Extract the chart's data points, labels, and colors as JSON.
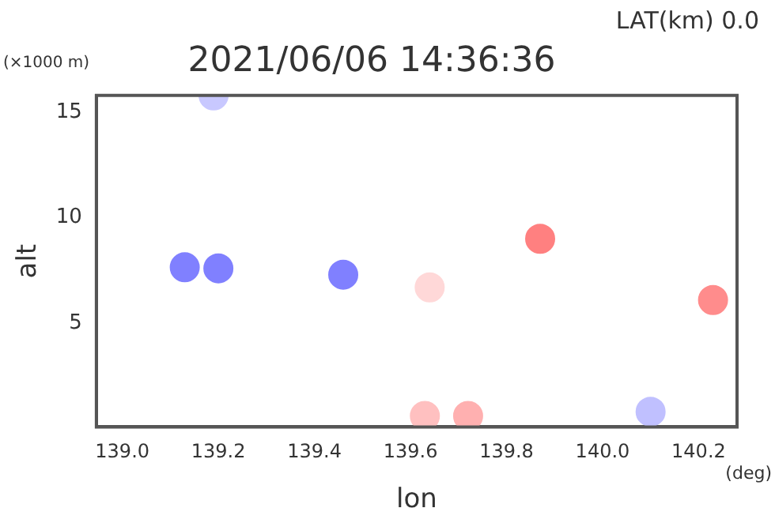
{
  "chart_data": {
    "type": "scatter",
    "title": "2021/06/06 14:36:36",
    "xlabel": "lon",
    "ylabel": "alt",
    "annotations": [
      "LAT(km) 0.0",
      "(×1000 m)",
      "(deg)"
    ],
    "x": [
      139.13,
      139.2,
      139.46,
      139.64,
      139.87,
      140.23,
      139.19,
      140.1,
      139.63,
      139.72
    ],
    "values": [
      7.65,
      7.6,
      7.3,
      6.7,
      9.0,
      6.1,
      15.8,
      0.8,
      0.6,
      0.6
    ],
    "colors": [
      "#8080ff",
      "#8080ff",
      "#8080ff",
      "#ffd8d8",
      "#ff8080",
      "#ff8c8c",
      "#c8c8ff",
      "#c0c0ff",
      "#ffc0c0",
      "#ffb0b0"
    ],
    "marker": "circle",
    "xlim": [
      138.946,
      140.28
    ],
    "xticks": [
      {
        "value": 139,
        "label": "139.0"
      },
      {
        "value": 139.2,
        "label": "139.2"
      },
      {
        "value": 139.4,
        "label": "139.4"
      },
      {
        "value": 139.6,
        "label": "139.6"
      },
      {
        "value": 139.8,
        "label": "139.8"
      },
      {
        "value": 140,
        "label": "140.0"
      },
      {
        "value": 140.2,
        "label": "140.2"
      }
    ],
    "ylim": [
      0.08,
      15.8
    ],
    "yticks": [
      5,
      10,
      15
    ],
    "grid": false,
    "legend": false
  }
}
